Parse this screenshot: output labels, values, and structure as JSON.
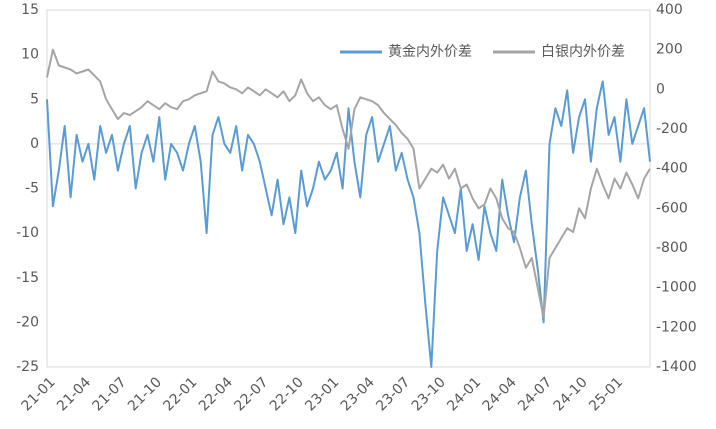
{
  "chart_data": {
    "type": "line",
    "categories": [
      "21-01",
      null,
      null,
      null,
      null,
      null,
      "21-04",
      null,
      null,
      null,
      null,
      null,
      "21-07",
      null,
      null,
      null,
      null,
      null,
      "21-10",
      null,
      null,
      null,
      null,
      null,
      "22-01",
      null,
      null,
      null,
      null,
      null,
      "22-04",
      null,
      null,
      null,
      null,
      null,
      "22-07",
      null,
      null,
      null,
      null,
      null,
      "22-10",
      null,
      null,
      null,
      null,
      null,
      "23-01",
      null,
      null,
      null,
      null,
      null,
      "23-04",
      null,
      null,
      null,
      null,
      null,
      "23-07",
      null,
      null,
      null,
      null,
      null,
      "23-10",
      null,
      null,
      null,
      null,
      null,
      "24-01",
      null,
      null,
      null,
      null,
      null,
      "24-04",
      null,
      null,
      null,
      null,
      null,
      "24-07",
      null,
      null,
      null,
      null,
      null,
      "24-10",
      null,
      null,
      null,
      null,
      null,
      "25-01",
      null,
      null,
      null,
      null,
      null,
      null
    ],
    "series": [
      {
        "name": "黄金内外价差",
        "color": "#5b9bd5",
        "axis": "y",
        "values": [
          5,
          -7,
          -3,
          2,
          -6,
          1,
          -2,
          0,
          -4,
          2,
          -1,
          1,
          -3,
          0,
          2,
          -5,
          -1,
          1,
          -2,
          3,
          -4,
          0,
          -1,
          -3,
          0,
          2,
          -2,
          -10,
          1,
          3,
          0,
          -1,
          2,
          -3,
          1,
          0,
          -2,
          -5,
          -8,
          -4,
          -9,
          -6,
          -10,
          -3,
          -7,
          -5,
          -2,
          -4,
          -3,
          -1,
          -5,
          4,
          -2,
          -6,
          1,
          3,
          -2,
          0,
          2,
          -3,
          -1,
          -4,
          -6,
          -10,
          -18,
          -25,
          -12,
          -6,
          -8,
          -10,
          -5,
          -12,
          -9,
          -13,
          -7,
          -10,
          -12,
          -4,
          -8,
          -11,
          -6,
          -3,
          -9,
          -14,
          -20,
          0,
          4,
          2,
          6,
          -1,
          3,
          5,
          -2,
          4,
          7,
          1,
          3,
          -2,
          5,
          0,
          2,
          4,
          -2
        ]
      },
      {
        "name": "白银内外价差",
        "color": "#a5a5a5",
        "axis": "y2",
        "values": [
          60,
          200,
          120,
          110,
          100,
          80,
          90,
          100,
          70,
          40,
          -50,
          -100,
          -150,
          -120,
          -130,
          -110,
          -90,
          -60,
          -80,
          -100,
          -70,
          -90,
          -100,
          -60,
          -50,
          -30,
          -20,
          -10,
          90,
          40,
          30,
          10,
          0,
          -20,
          10,
          -10,
          -30,
          0,
          -20,
          -40,
          -10,
          -60,
          -30,
          50,
          -20,
          -60,
          -40,
          -80,
          -100,
          -80,
          -200,
          -300,
          -100,
          -40,
          -50,
          -60,
          -80,
          -120,
          -150,
          -180,
          -220,
          -250,
          -300,
          -500,
          -450,
          -400,
          -420,
          -380,
          -450,
          -400,
          -500,
          -480,
          -550,
          -600,
          -580,
          -500,
          -550,
          -650,
          -700,
          -720,
          -800,
          -900,
          -850,
          -1000,
          -1150,
          -850,
          -800,
          -750,
          -700,
          -720,
          -600,
          -650,
          -500,
          -400,
          -480,
          -550,
          -450,
          -500,
          -420,
          -480,
          -550,
          -450,
          -400
        ]
      }
    ],
    "ylim": [
      -25,
      15
    ],
    "yticks": [
      15,
      10,
      5,
      0,
      -5,
      -10,
      -15,
      -20,
      -25
    ],
    "y2lim": [
      -1400,
      400
    ],
    "y2ticks": [
      400,
      200,
      0,
      -200,
      -400,
      -600,
      -800,
      -1000,
      -1200,
      -1400
    ],
    "legend": "top-right"
  }
}
